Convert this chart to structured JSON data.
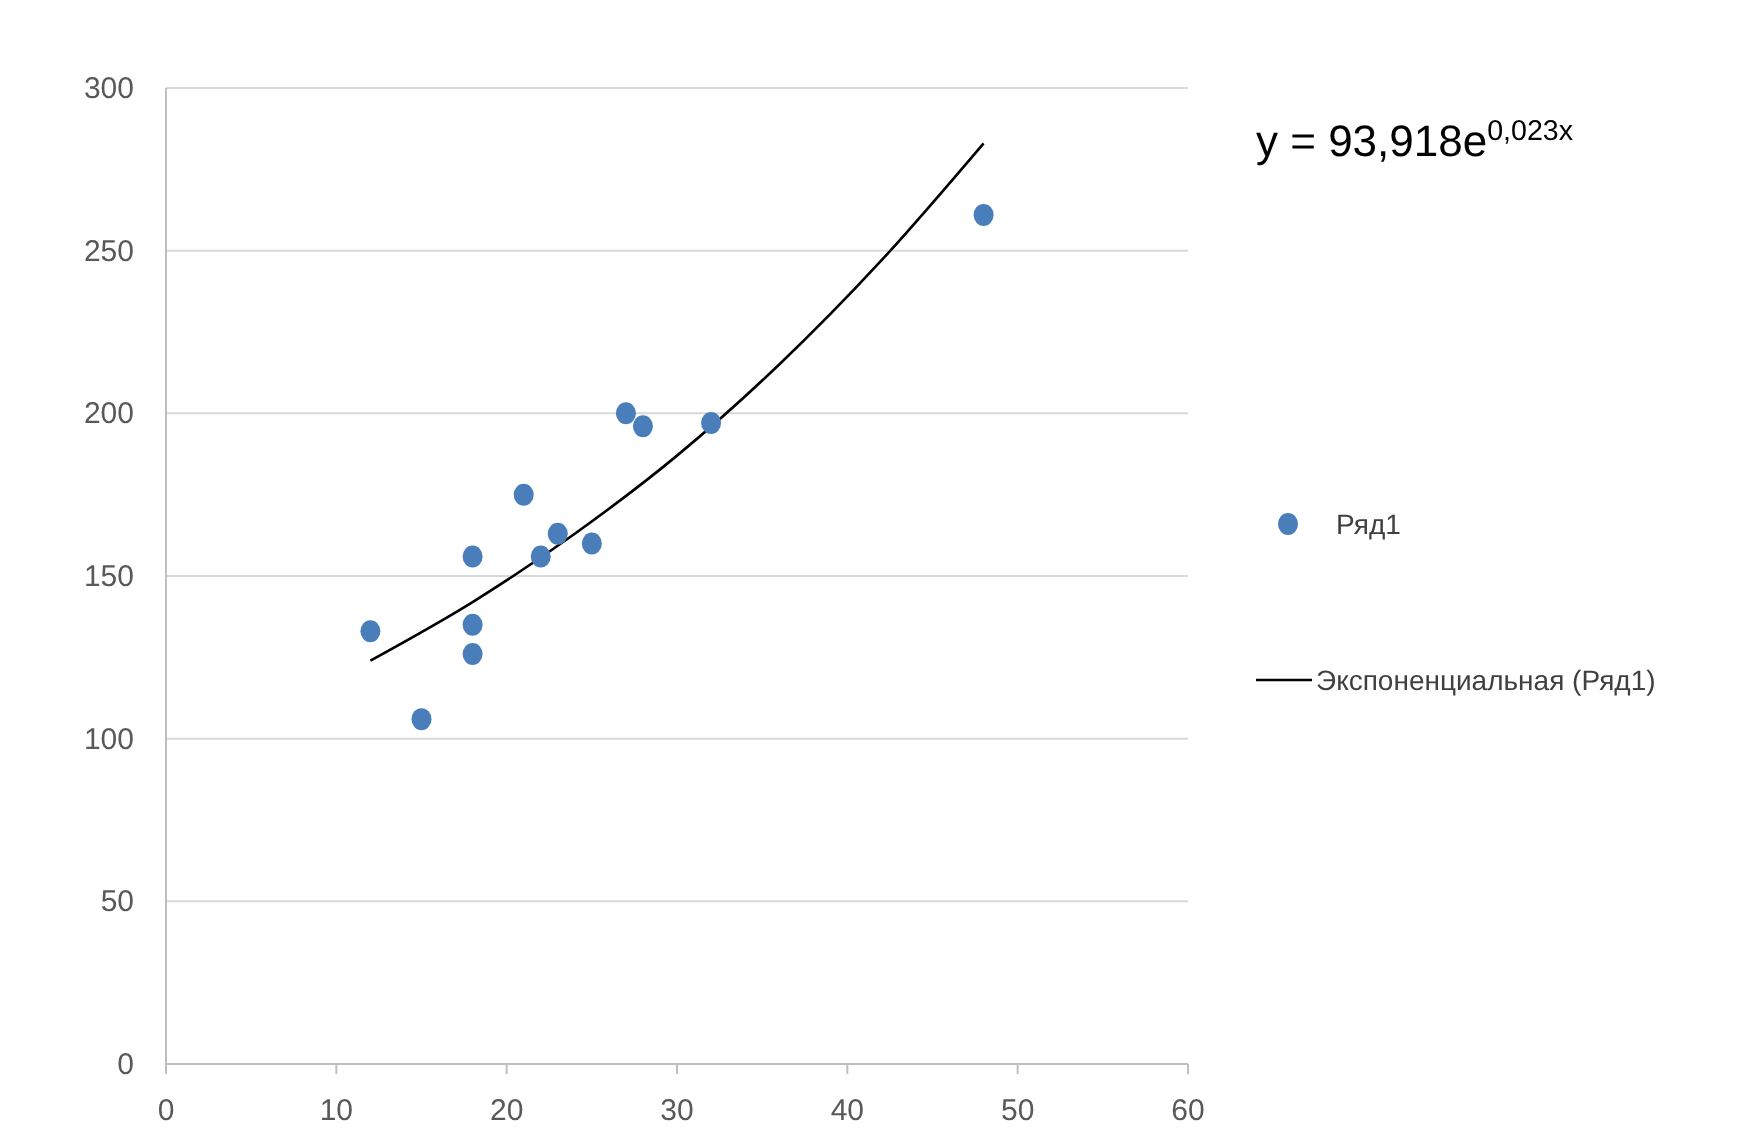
{
  "chart_data": {
    "type": "scatter",
    "series": [
      {
        "name": "Ряд1",
        "marker": "circle",
        "color": "#4a7ebb",
        "x": [
          12,
          15,
          18,
          18,
          18,
          21,
          22,
          23,
          25,
          27,
          28,
          32,
          48
        ],
        "values": [
          133,
          106,
          156,
          135,
          126,
          175,
          156,
          163,
          160,
          200,
          196,
          197,
          261
        ]
      },
      {
        "name": "Экспоненциальная (Ряд1)",
        "type": "line",
        "marker": "none",
        "line_style": "solid",
        "color": "#000000",
        "x": [
          12,
          18,
          24,
          30,
          36,
          42,
          48
        ],
        "values": [
          124,
          142,
          163,
          187,
          215,
          247,
          283
        ]
      }
    ],
    "xlim": [
      0,
      60
    ],
    "xticks": [
      0,
      10,
      20,
      30,
      40,
      50,
      60
    ],
    "ylim": [
      0,
      300
    ],
    "yticks": [
      0,
      50,
      100,
      150,
      200,
      250,
      300
    ],
    "grid": "y",
    "legend": "right",
    "annotations": [
      "y = 93,918e$^{0,023x}$"
    ]
  }
}
